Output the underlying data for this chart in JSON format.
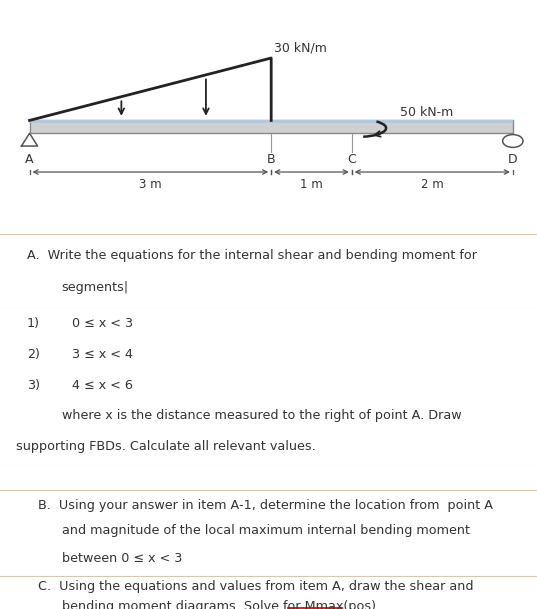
{
  "bg_color_light": "#fdf6e3",
  "bg_color_mid": "#f5ede0",
  "bg_color_white": "#ffffff",
  "beam_color": "#d0d0d0",
  "beam_top_color": "#b0c8e0",
  "beam_outline": "#888888",
  "text_color": "#333333",
  "arrow_color": "#222222",
  "divider_color": "#d6c9a8",
  "load_label": "30 kN/m",
  "moment_label": "50 kN-m",
  "dist_AB": "3 m",
  "dist_BC": "1 m",
  "dist_CD": "2 m",
  "item1": "0 ≤ x < 3",
  "item2": "3 ≤ x < 4",
  "item3": "4 ≤ x < 6",
  "fig_width": 5.37,
  "fig_height": 6.09,
  "dpi": 100
}
